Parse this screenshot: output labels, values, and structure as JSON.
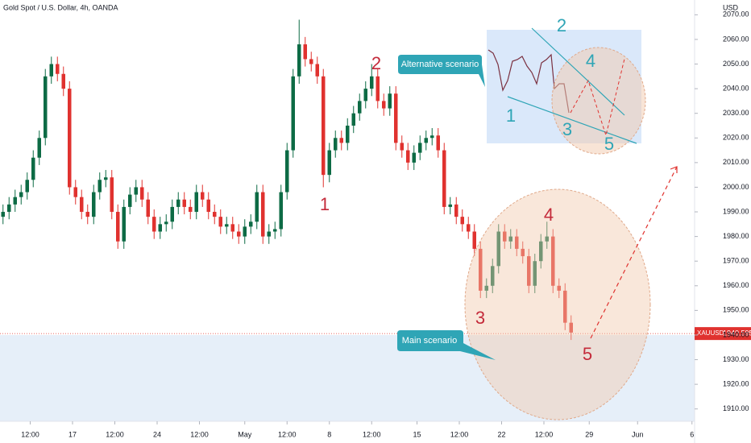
{
  "chart_data": {
    "type": "candlestick",
    "title": "Gold Spot / U.S. Dollar, 4h, OANDA",
    "currency": "USD",
    "symbol": "XAUUSD",
    "last_price": 1940.595,
    "up_color": "#0d6b45",
    "down_color": "#e0322f",
    "grid": false,
    "candles": [
      [
        1988,
        1993,
        1985,
        1990
      ],
      [
        1990,
        1996,
        1987,
        1993
      ],
      [
        1993,
        1999,
        1990,
        1996
      ],
      [
        1996,
        2001,
        1993,
        1998
      ],
      [
        1998,
        2006,
        1995,
        2003
      ],
      [
        2003,
        2015,
        2000,
        2012
      ],
      [
        2012,
        2023,
        2009,
        2020
      ],
      [
        2020,
        2048,
        2017,
        2045
      ],
      [
        2045,
        2053,
        2042,
        2050
      ],
      [
        2050,
        2053,
        2043,
        2046
      ],
      [
        2046,
        2049,
        2037,
        2040
      ],
      [
        2040,
        2043,
        1997,
        2000
      ],
      [
        2000,
        2003,
        1993,
        1996
      ],
      [
        1996,
        1999,
        1987,
        1990
      ],
      [
        1990,
        1993,
        1985,
        1988
      ],
      [
        1988,
        2001,
        1985,
        1998
      ],
      [
        1998,
        2006,
        1995,
        2003
      ],
      [
        2003,
        2007,
        2000,
        2004
      ],
      [
        2004,
        2007,
        1987,
        1990
      ],
      [
        1990,
        1993,
        1975,
        1978
      ],
      [
        1978,
        1995,
        1975,
        1992
      ],
      [
        1992,
        2000,
        1989,
        1997
      ],
      [
        1997,
        2003,
        1994,
        2000
      ],
      [
        2000,
        2003,
        1992,
        1995
      ],
      [
        1995,
        1998,
        1985,
        1988
      ],
      [
        1988,
        1991,
        1979,
        1982
      ],
      [
        1982,
        1988,
        1979,
        1985
      ],
      [
        1985,
        1989,
        1982,
        1986
      ],
      [
        1986,
        1995,
        1983,
        1992
      ],
      [
        1992,
        1998,
        1989,
        1995
      ],
      [
        1995,
        1998,
        1989,
        1992
      ],
      [
        1992,
        1995,
        1987,
        1990
      ],
      [
        1990,
        2001,
        1987,
        1998
      ],
      [
        1998,
        2001,
        1992,
        1995
      ],
      [
        1995,
        1998,
        1987,
        1990
      ],
      [
        1990,
        1993,
        1985,
        1988
      ],
      [
        1988,
        1991,
        1981,
        1984
      ],
      [
        1984,
        1988,
        1981,
        1985
      ],
      [
        1985,
        1988,
        1979,
        1982
      ],
      [
        1982,
        1985,
        1977,
        1980
      ],
      [
        1980,
        1987,
        1977,
        1984
      ],
      [
        1984,
        1989,
        1981,
        1986
      ],
      [
        1986,
        2001,
        1983,
        1998
      ],
      [
        1998,
        2001,
        1977,
        1980
      ],
      [
        1980,
        1985,
        1977,
        1982
      ],
      [
        1982,
        1986,
        1979,
        1983
      ],
      [
        1983,
        2001,
        1980,
        1998
      ],
      [
        1998,
        2018,
        1995,
        2015
      ],
      [
        2015,
        2048,
        2012,
        2045
      ],
      [
        2045,
        2068,
        2042,
        2058
      ],
      [
        2058,
        2061,
        2049,
        2052
      ],
      [
        2052,
        2055,
        2047,
        2050
      ],
      [
        2050,
        2053,
        2042,
        2045
      ],
      [
        2045,
        2048,
        2000,
        2005
      ],
      [
        2005,
        2018,
        2002,
        2015
      ],
      [
        2015,
        2023,
        2012,
        2020
      ],
      [
        2020,
        2023,
        2015,
        2018
      ],
      [
        2018,
        2028,
        2015,
        2025
      ],
      [
        2025,
        2033,
        2022,
        2030
      ],
      [
        2030,
        2038,
        2027,
        2035
      ],
      [
        2035,
        2043,
        2032,
        2040
      ],
      [
        2040,
        2050,
        2037,
        2045
      ],
      [
        2045,
        2048,
        2032,
        2035
      ],
      [
        2035,
        2038,
        2029,
        2032
      ],
      [
        2032,
        2041,
        2029,
        2038
      ],
      [
        2038,
        2041,
        2015,
        2018
      ],
      [
        2018,
        2021,
        2012,
        2015
      ],
      [
        2015,
        2018,
        2007,
        2010
      ],
      [
        2010,
        2017,
        2007,
        2014
      ],
      [
        2014,
        2021,
        2011,
        2018
      ],
      [
        2018,
        2023,
        2015,
        2020
      ],
      [
        2020,
        2024,
        2017,
        2021
      ],
      [
        2021,
        2024,
        2012,
        2015
      ],
      [
        2015,
        2018,
        1989,
        1992
      ],
      [
        1992,
        1996,
        1989,
        1993
      ],
      [
        1993,
        1996,
        1985,
        1988
      ],
      [
        1988,
        1991,
        1982,
        1985
      ],
      [
        1985,
        1988,
        1979,
        1982
      ],
      [
        1982,
        1985,
        1972,
        1975
      ],
      [
        1975,
        1978,
        1955,
        1958
      ],
      [
        1958,
        1963,
        1955,
        1960
      ],
      [
        1960,
        1971,
        1957,
        1968
      ],
      [
        1968,
        1985,
        1965,
        1982
      ],
      [
        1982,
        1985,
        1975,
        1978
      ],
      [
        1978,
        1983,
        1975,
        1980
      ],
      [
        1980,
        1983,
        1972,
        1975
      ],
      [
        1975,
        1978,
        1969,
        1972
      ],
      [
        1972,
        1975,
        1957,
        1960
      ],
      [
        1960,
        1973,
        1957,
        1970
      ],
      [
        1970,
        1981,
        1967,
        1978
      ],
      [
        1978,
        1986,
        1975,
        1980
      ],
      [
        1980,
        1983,
        1957,
        1960
      ],
      [
        1960,
        1963,
        1955,
        1958
      ],
      [
        1958,
        1961,
        1942,
        1945
      ],
      [
        1945,
        1948,
        1938,
        1941
      ]
    ],
    "xlim": [
      -0.5,
      114.5
    ],
    "xticks": [
      {
        "value": 4.5,
        "label": "12:00"
      },
      {
        "value": 11.5,
        "label": "17"
      },
      {
        "value": 18.5,
        "label": "12:00"
      },
      {
        "value": 25.5,
        "label": "24"
      },
      {
        "value": 32.5,
        "label": "12:00"
      },
      {
        "value": 40,
        "label": "May"
      },
      {
        "value": 47,
        "label": "12:00"
      },
      {
        "value": 54,
        "label": "8"
      },
      {
        "value": 61,
        "label": "12:00"
      },
      {
        "value": 68.5,
        "label": "15"
      },
      {
        "value": 75.5,
        "label": "12:00"
      },
      {
        "value": 82.5,
        "label": "22"
      },
      {
        "value": 89.5,
        "label": "12:00"
      },
      {
        "value": 97,
        "label": "29"
      },
      {
        "value": 105,
        "label": "Jun"
      },
      {
        "value": 114,
        "label": "6"
      }
    ],
    "ylim": [
      1905,
      2076
    ],
    "yticks": [
      {
        "value": 1910,
        "label": "1910.00"
      },
      {
        "value": 1920,
        "label": "1920.00"
      },
      {
        "value": 1930,
        "label": "1930.00"
      },
      {
        "value": 1940,
        "label": "1940.00"
      },
      {
        "value": 1950,
        "label": "1950.00"
      },
      {
        "value": 1960,
        "label": "1960.00"
      },
      {
        "value": 1970,
        "label": "1970.00"
      },
      {
        "value": 1980,
        "label": "1980.00"
      },
      {
        "value": 1990,
        "label": "1990.00"
      },
      {
        "value": 2000,
        "label": "2000.00"
      },
      {
        "value": 2010,
        "label": "2010.00"
      },
      {
        "value": 2020,
        "label": "2020.00"
      },
      {
        "value": 2030,
        "label": "2030.00"
      },
      {
        "value": 2040,
        "label": "2040.00"
      },
      {
        "value": 2050,
        "label": "2050.00"
      },
      {
        "value": 2060,
        "label": "2060.00"
      },
      {
        "value": 2070,
        "label": "2070.00"
      }
    ],
    "annotations": {
      "alternative": "Alternative scenario",
      "main": "Main scenario",
      "main_waves": [
        "1",
        "2",
        "3",
        "4",
        "5"
      ],
      "alt_waves": [
        "1",
        "2",
        "3",
        "4",
        "5"
      ]
    }
  }
}
